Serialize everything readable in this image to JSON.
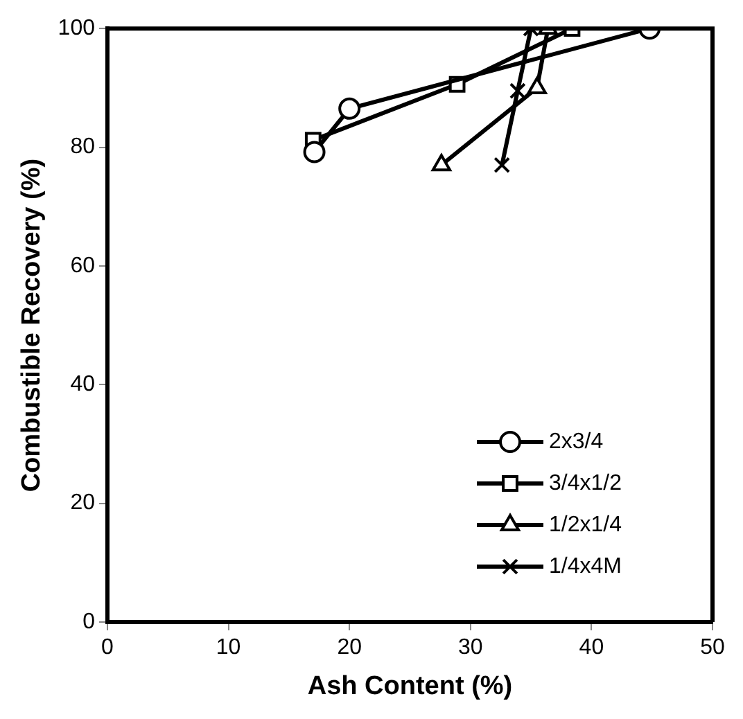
{
  "chart_data": {
    "type": "line",
    "xlabel": "Ash Content (%)",
    "ylabel": "Combustible Recovery (%)",
    "xlim": [
      0,
      50
    ],
    "xticks": [
      0,
      10,
      20,
      30,
      40,
      50
    ],
    "ylim": [
      0,
      100
    ],
    "yticks": [
      0,
      20,
      40,
      60,
      80,
      100
    ],
    "grid": false,
    "legend": "bottom right",
    "line_style": "solid",
    "series": [
      {
        "name": "2x3/4",
        "color": "#000000",
        "marker": "circle",
        "x": [
          17.1,
          20,
          44.8
        ],
        "values": [
          79.2,
          86.5,
          100
        ]
      },
      {
        "name": "3/4x1/2",
        "color": "#000000",
        "marker": "square",
        "x": [
          17,
          28.9,
          38.4
        ],
        "values": [
          81.2,
          90.6,
          100
        ]
      },
      {
        "name": "1/2x1/4",
        "color": "#000000",
        "marker": "triangle",
        "x": [
          27.6,
          35.5,
          36.4
        ],
        "values": [
          77,
          90,
          100
        ]
      },
      {
        "name": "1/4x4M",
        "color": "#000000",
        "marker": "cross",
        "x": [
          32.6,
          33.9,
          35
        ],
        "values": [
          77,
          89.5,
          100
        ]
      }
    ]
  }
}
